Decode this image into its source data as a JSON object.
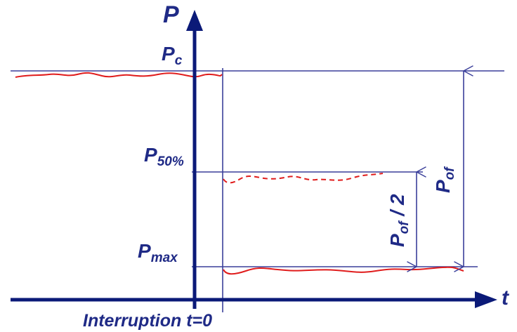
{
  "colors": {
    "axis": "#0b1a78",
    "guide": "#3a3f9a",
    "trace": "#e01c1c",
    "text": "#1f2a86"
  },
  "axes": {
    "y_label": "P",
    "x_label": "t"
  },
  "levels": {
    "pc": {
      "main": "P",
      "sub": "c"
    },
    "p50": {
      "main": "P",
      "sub": "50%"
    },
    "pmax": {
      "main": "P",
      "sub": "max"
    }
  },
  "dimensions": {
    "pof": {
      "main": "P",
      "sub": "of"
    },
    "pof_half": {
      "main": "P",
      "sub": "of",
      "suffix": " / 2"
    }
  },
  "bottom_label": "Interruption t=0",
  "traces": [
    {
      "name": "pressure-before-interruption",
      "style": "solid"
    },
    {
      "name": "pressure-at-50-percent",
      "style": "dashed"
    },
    {
      "name": "pressure-after-interruption",
      "style": "solid"
    }
  ]
}
